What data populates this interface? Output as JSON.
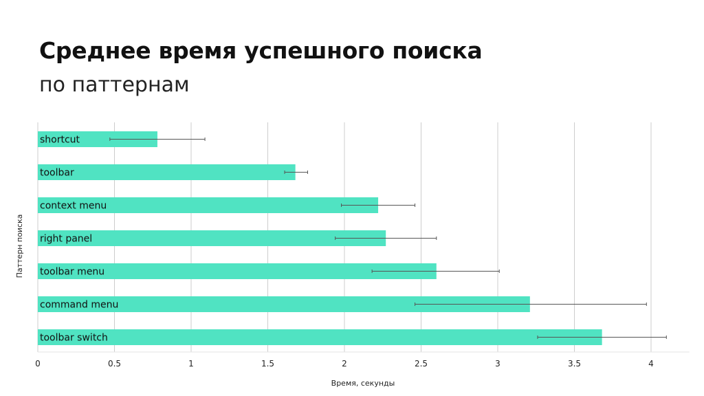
{
  "header": {
    "title": "Среднее время успешного поиска",
    "subtitle": "по паттернам"
  },
  "colors": {
    "bar": "#50e3c2",
    "grid": "#cccccc",
    "error_bar": "#555555",
    "text": "#111111"
  },
  "chart_data": {
    "type": "bar",
    "orientation": "horizontal",
    "categories": [
      "shortcut",
      "toolbar",
      "context menu",
      "right panel",
      "toolbar menu",
      "command menu",
      "toolbar switch"
    ],
    "values": [
      0.78,
      1.68,
      2.22,
      2.27,
      2.6,
      3.21,
      3.68
    ],
    "error_low": [
      0.47,
      1.61,
      1.98,
      1.94,
      2.18,
      2.46,
      3.26
    ],
    "error_high": [
      1.09,
      1.76,
      2.46,
      2.6,
      3.01,
      3.97,
      4.1
    ],
    "xlabel": "Время, секунды",
    "ylabel": "Паттерн поиска",
    "xlim": [
      0,
      4.25
    ],
    "xticks": [
      0,
      0.5,
      1,
      1.5,
      2,
      2.5,
      3,
      3.5,
      4
    ],
    "grid": true,
    "legend": "none"
  }
}
